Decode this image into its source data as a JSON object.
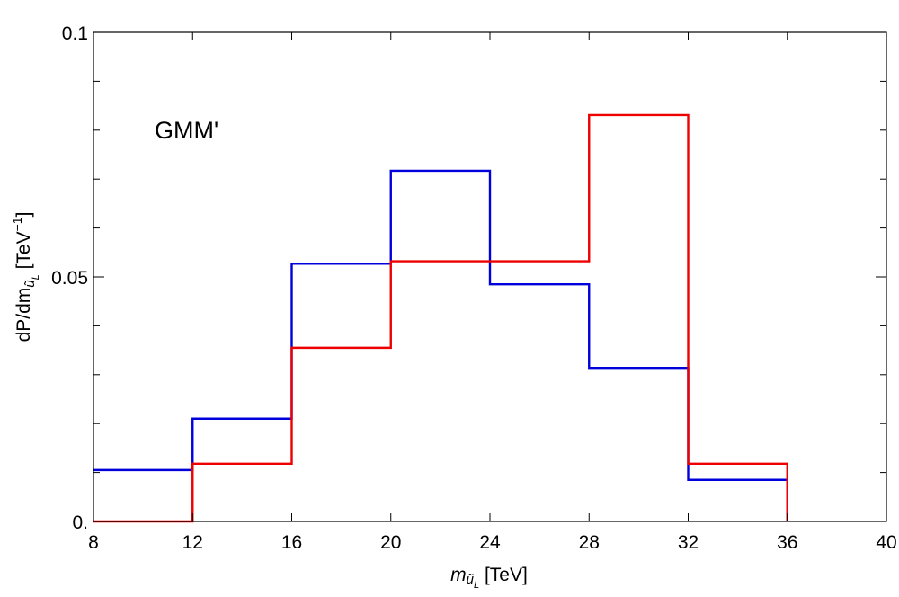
{
  "chart_data": {
    "type": "line",
    "style": "step-histogram",
    "annotation": "GMM'",
    "xlabel": {
      "main": "m",
      "sub": "ũ",
      "subsub": "L",
      "unit": " [TeV]"
    },
    "ylabel": {
      "main": "dP/dm",
      "sub": "ũ",
      "subsub": "L",
      "unit_pre": " [TeV",
      "unit_sup": "−1",
      "unit_post": "]"
    },
    "xlim": [
      8,
      40
    ],
    "ylim": [
      0,
      0.1
    ],
    "x_ticks": [
      8,
      12,
      16,
      20,
      24,
      28,
      32,
      36,
      40
    ],
    "x_tick_labels": [
      "8",
      "12",
      "16",
      "20",
      "24",
      "28",
      "32",
      "36",
      "40"
    ],
    "y_ticks": [
      0,
      0.05,
      0.1
    ],
    "y_tick_labels": [
      "0.",
      "0.05",
      "0.1"
    ],
    "y_minor_step": 0.01,
    "bin_edges": [
      8,
      12,
      16,
      20,
      24,
      28,
      32,
      36
    ],
    "grid": false,
    "series": [
      {
        "color": "#0000dd",
        "values": [
          0.0105,
          0.021,
          0.0527,
          0.0717,
          0.0485,
          0.0314,
          0.0085
        ]
      },
      {
        "color": "#ee0000",
        "values": [
          0.0,
          0.0118,
          0.0355,
          0.0532,
          0.0532,
          0.0831,
          0.0118
        ]
      }
    ]
  }
}
